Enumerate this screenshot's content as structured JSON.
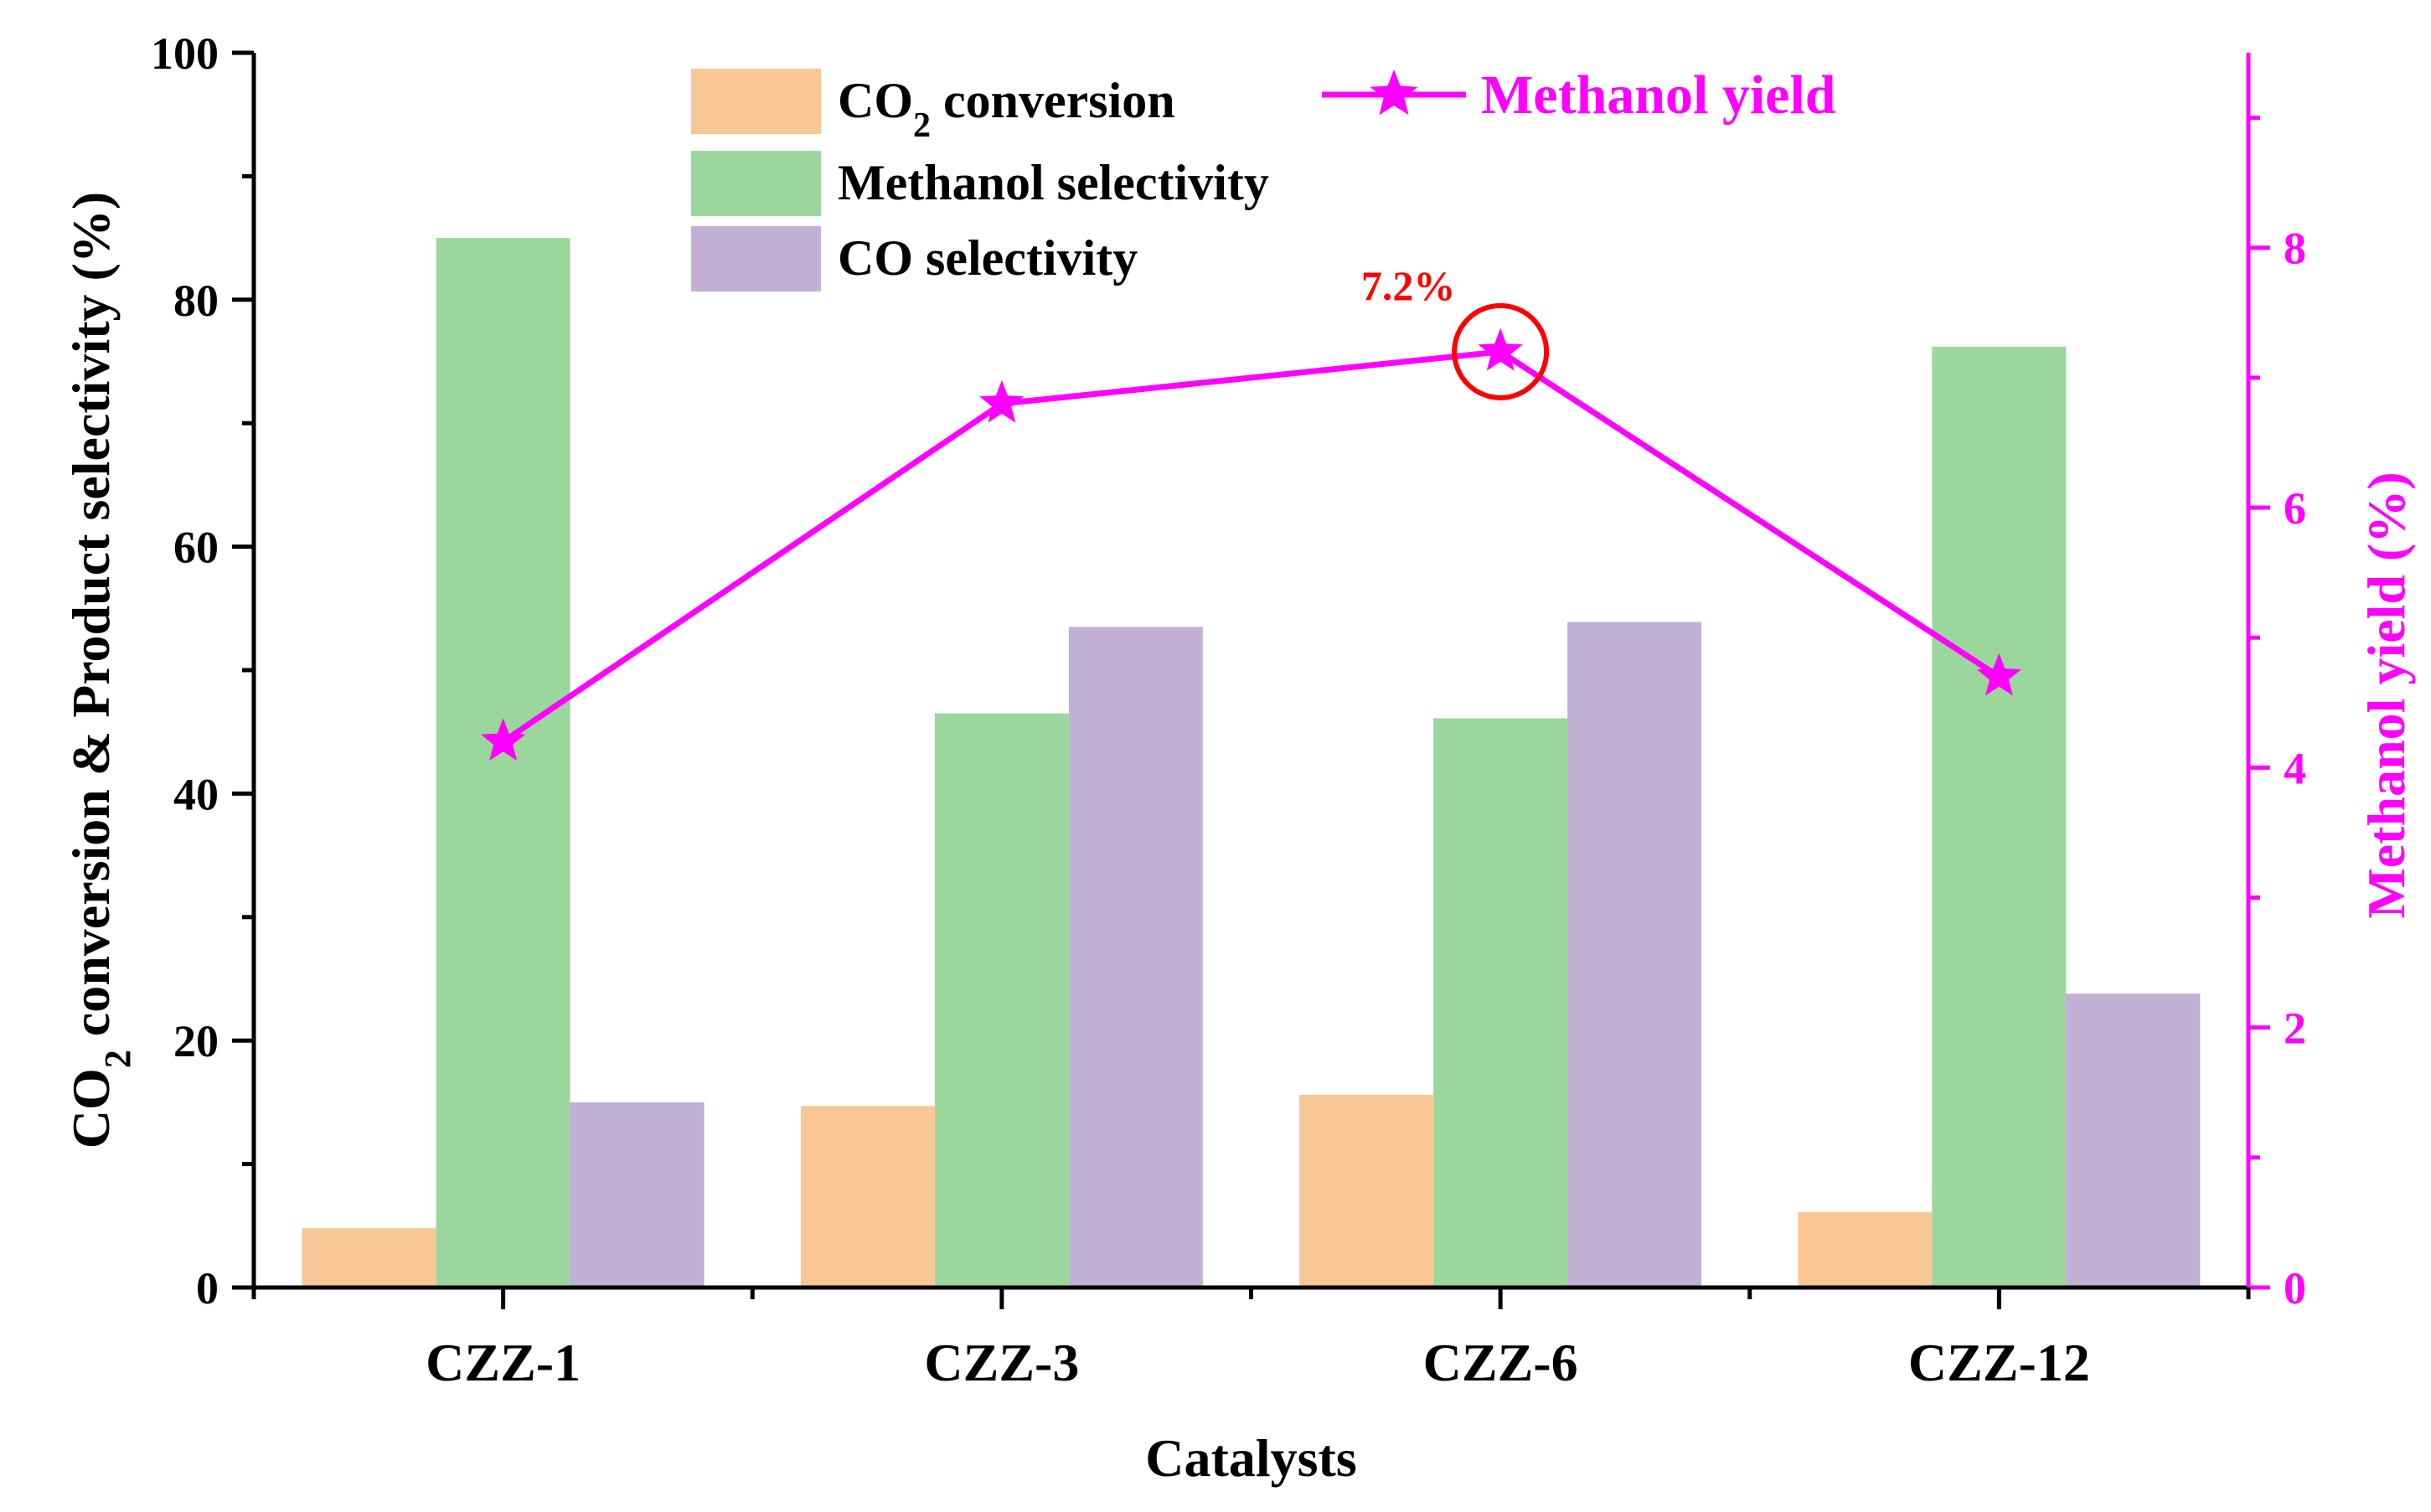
{
  "chart_data": {
    "type": "bar",
    "title": "",
    "xlabel": "Catalysts",
    "ylabel_parts": [
      "CO",
      "2",
      " conversion & Product selectivity (%)"
    ],
    "y2label": "Methanol yield (%)",
    "categories": [
      "CZZ-1",
      "CZZ-3",
      "CZZ-6",
      "CZZ-12"
    ],
    "ylim": [
      0,
      100
    ],
    "yticks": [
      "0",
      "20",
      "40",
      "60",
      "80",
      "100"
    ],
    "y2lim": [
      0,
      9.5
    ],
    "y2ticks": [
      "0",
      "2",
      "4",
      "6",
      "8"
    ],
    "series": [
      {
        "name": "CO2 conversion",
        "label_parts": [
          "CO",
          "2",
          " conversion"
        ],
        "color": "#f9c795",
        "values": [
          4.8,
          14.7,
          15.6,
          6.1
        ]
      },
      {
        "name": "Methanol selectivity",
        "label": "Methanol selectivity",
        "color": "#9bd79c",
        "values": [
          85.0,
          46.5,
          46.1,
          76.2
        ]
      },
      {
        "name": "CO selectivity",
        "label": "CO selectivity",
        "color": "#c2b0d5",
        "values": [
          15.0,
          53.5,
          53.9,
          23.8
        ]
      }
    ],
    "line_series": {
      "name": "Methanol yield",
      "axis": "right",
      "color": "#ff00ff",
      "marker": "star",
      "values": [
        4.2,
        6.8,
        7.2,
        4.7
      ]
    },
    "annotation": {
      "text": "7.2%",
      "category": "CZZ-6",
      "color": "#ff0000"
    }
  }
}
